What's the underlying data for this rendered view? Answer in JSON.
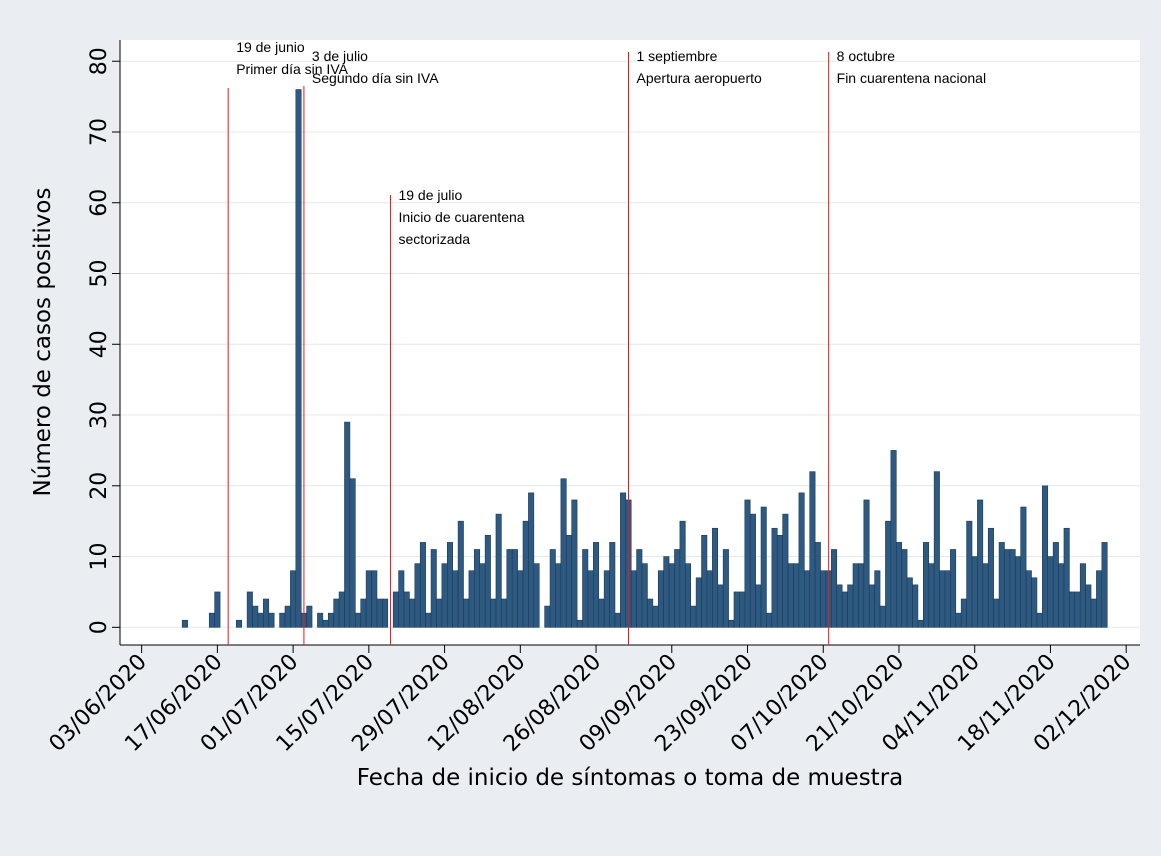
{
  "chart_data": {
    "type": "bar",
    "x_label": "Fecha de inicio de síntomas o toma de muestra",
    "y_label": "Número de casos positivos",
    "color": "#2e5a82",
    "edge_color": "#1b3a57",
    "annotation_color": "#e8191c",
    "grid": true,
    "xlim": [
      "2020-05-30",
      "2020-12-04"
    ],
    "xticks": [
      {
        "value": "2020-06-03",
        "label": "03/06/2020"
      },
      {
        "value": "2020-06-17",
        "label": "17/06/2020"
      },
      {
        "value": "2020-07-01",
        "label": "01/07/2020"
      },
      {
        "value": "2020-07-15",
        "label": "15/07/2020"
      },
      {
        "value": "2020-07-29",
        "label": "29/07/2020"
      },
      {
        "value": "2020-08-12",
        "label": "12/08/2020"
      },
      {
        "value": "2020-08-26",
        "label": "26/08/2020"
      },
      {
        "value": "2020-09-09",
        "label": "09/09/2020"
      },
      {
        "value": "2020-09-23",
        "label": "23/09/2020"
      },
      {
        "value": "2020-10-07",
        "label": "07/10/2020"
      },
      {
        "value": "2020-10-21",
        "label": "21/10/2020"
      },
      {
        "value": "2020-11-04",
        "label": "04/11/2020"
      },
      {
        "value": "2020-11-18",
        "label": "18/11/2020"
      },
      {
        "value": "2020-12-02",
        "label": "02/12/2020"
      }
    ],
    "ylim": [
      -2.5,
      83
    ],
    "yticks": [
      0,
      10,
      20,
      30,
      40,
      50,
      60,
      70,
      80
    ],
    "annotations": [
      {
        "date": "2020-06-19",
        "lines": [
          "19 de junio",
          "Primer día sin IVA"
        ]
      },
      {
        "date": "2020-07-03",
        "lines": [
          "3 de julio",
          "Segundo día sin IVA"
        ]
      },
      {
        "date": "2020-07-19",
        "lines": [
          "19 de julio",
          "Inicio de cuarentena",
          "sectorizada"
        ]
      },
      {
        "date": "2020-09-01",
        "lines": [
          "1 septiembre",
          "Apertura aeropuerto"
        ]
      },
      {
        "date": "2020-10-08",
        "lines": [
          "8 octubre",
          "Fin cuarentena nacional"
        ]
      }
    ],
    "x": [
      "2020-06-11",
      "2020-06-16",
      "2020-06-17",
      "2020-06-21",
      "2020-06-23",
      "2020-06-24",
      "2020-06-25",
      "2020-06-26",
      "2020-06-27",
      "2020-06-29",
      "2020-06-30",
      "2020-07-01",
      "2020-07-02",
      "2020-07-03",
      "2020-07-04",
      "2020-07-06",
      "2020-07-07",
      "2020-07-08",
      "2020-07-09",
      "2020-07-10",
      "2020-07-11",
      "2020-07-12",
      "2020-07-13",
      "2020-07-14",
      "2020-07-15",
      "2020-07-16",
      "2020-07-17",
      "2020-07-18",
      "2020-07-20",
      "2020-07-21",
      "2020-07-22",
      "2020-07-23",
      "2020-07-24",
      "2020-07-25",
      "2020-07-26",
      "2020-07-27",
      "2020-07-28",
      "2020-07-29",
      "2020-07-30",
      "2020-07-31",
      "2020-08-01",
      "2020-08-02",
      "2020-08-03",
      "2020-08-04",
      "2020-08-05",
      "2020-08-06",
      "2020-08-07",
      "2020-08-08",
      "2020-08-09",
      "2020-08-10",
      "2020-08-11",
      "2020-08-12",
      "2020-08-13",
      "2020-08-14",
      "2020-08-15",
      "2020-08-17",
      "2020-08-18",
      "2020-08-19",
      "2020-08-20",
      "2020-08-21",
      "2020-08-22",
      "2020-08-23",
      "2020-08-24",
      "2020-08-25",
      "2020-08-26",
      "2020-08-27",
      "2020-08-28",
      "2020-08-29",
      "2020-08-30",
      "2020-08-31",
      "2020-09-01",
      "2020-09-02",
      "2020-09-03",
      "2020-09-04",
      "2020-09-05",
      "2020-09-06",
      "2020-09-07",
      "2020-09-08",
      "2020-09-09",
      "2020-09-10",
      "2020-09-11",
      "2020-09-12",
      "2020-09-13",
      "2020-09-14",
      "2020-09-15",
      "2020-09-16",
      "2020-09-17",
      "2020-09-18",
      "2020-09-19",
      "2020-09-20",
      "2020-09-21",
      "2020-09-22",
      "2020-09-23",
      "2020-09-24",
      "2020-09-25",
      "2020-09-26",
      "2020-09-27",
      "2020-09-28",
      "2020-09-29",
      "2020-09-30",
      "2020-10-01",
      "2020-10-02",
      "2020-10-03",
      "2020-10-04",
      "2020-10-05",
      "2020-10-06",
      "2020-10-07",
      "2020-10-08",
      "2020-10-09",
      "2020-10-10",
      "2020-10-11",
      "2020-10-12",
      "2020-10-13",
      "2020-10-14",
      "2020-10-15",
      "2020-10-16",
      "2020-10-17",
      "2020-10-18",
      "2020-10-19",
      "2020-10-20",
      "2020-10-21",
      "2020-10-22",
      "2020-10-23",
      "2020-10-24",
      "2020-10-25",
      "2020-10-26",
      "2020-10-27",
      "2020-10-28",
      "2020-10-29",
      "2020-10-30",
      "2020-10-31",
      "2020-11-01",
      "2020-11-02",
      "2020-11-03",
      "2020-11-04",
      "2020-11-05",
      "2020-11-06",
      "2020-11-07",
      "2020-11-08",
      "2020-11-09",
      "2020-11-10",
      "2020-11-11",
      "2020-11-12",
      "2020-11-13",
      "2020-11-14",
      "2020-11-15",
      "2020-11-16",
      "2020-11-17",
      "2020-11-18",
      "2020-11-19",
      "2020-11-20",
      "2020-11-21",
      "2020-11-22",
      "2020-11-23",
      "2020-11-24",
      "2020-11-25",
      "2020-11-26",
      "2020-11-27",
      "2020-11-28"
    ],
    "values": [
      1,
      2,
      5,
      1,
      5,
      3,
      2,
      4,
      2,
      2,
      3,
      8,
      76,
      2,
      3,
      2,
      1,
      2,
      4,
      5,
      29,
      21,
      2,
      4,
      8,
      8,
      4,
      4,
      5,
      8,
      5,
      4,
      9,
      12,
      2,
      11,
      4,
      9,
      12,
      8,
      15,
      4,
      8,
      11,
      9,
      13,
      4,
      16,
      4,
      11,
      11,
      8,
      15,
      19,
      9,
      3,
      11,
      9,
      21,
      13,
      18,
      1,
      11,
      8,
      12,
      4,
      8,
      12,
      2,
      19,
      18,
      8,
      11,
      9,
      4,
      3,
      8,
      10,
      9,
      11,
      15,
      9,
      3,
      7,
      13,
      8,
      14,
      6,
      11,
      1,
      5,
      5,
      18,
      16,
      6,
      17,
      2,
      14,
      13,
      16,
      9,
      9,
      19,
      8,
      22,
      12,
      8,
      8,
      11,
      6,
      5,
      6,
      9,
      9,
      18,
      6,
      8,
      3,
      15,
      25,
      12,
      11,
      7,
      6,
      1,
      12,
      9,
      22,
      8,
      8,
      11,
      2,
      4,
      15,
      10,
      18,
      9,
      14,
      4,
      12,
      11,
      11,
      10,
      17,
      8,
      7,
      2,
      20,
      10,
      12,
      9,
      14,
      5,
      5,
      9,
      6,
      4,
      8,
      12
    ]
  }
}
